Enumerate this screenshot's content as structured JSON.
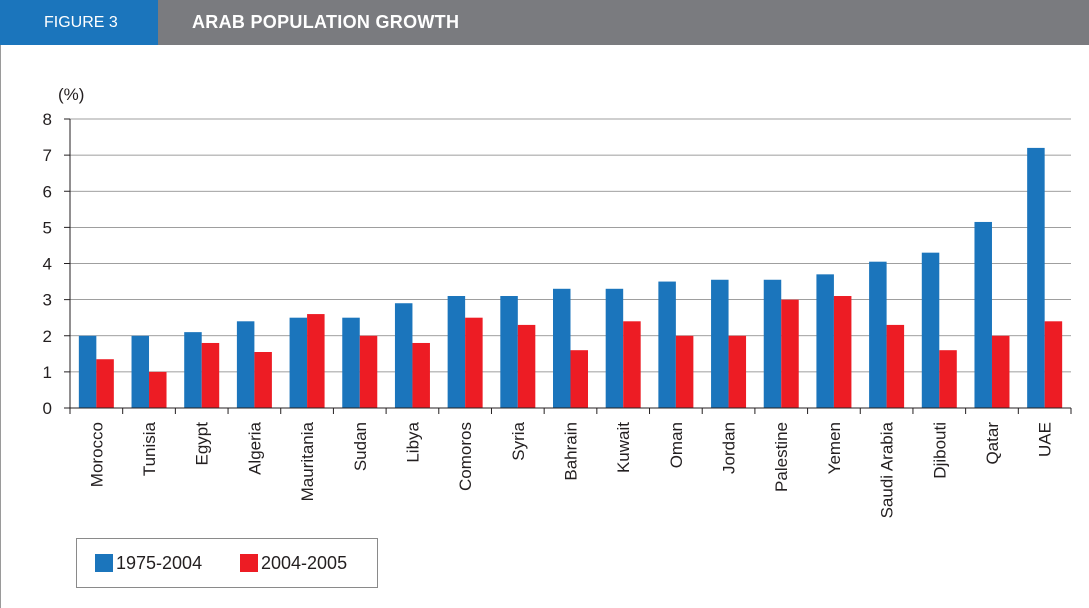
{
  "header": {
    "figure_label": "FIGURE 3",
    "title": "ARAB POPULATION GROWTH"
  },
  "colors": {
    "header_bg": "#7a7b7f",
    "tab_bg": "#1b75bc",
    "series_1": "#1b75bc",
    "series_2": "#ed1c24"
  },
  "chart_data": {
    "type": "bar",
    "title": "ARAB POPULATION GROWTH",
    "ylabel": "(%)",
    "xlabel": "",
    "ylim": [
      0,
      8
    ],
    "yticks": [
      0,
      1,
      2,
      3,
      4,
      5,
      6,
      7,
      8
    ],
    "grid": true,
    "legend_position": "bottom-left",
    "categories": [
      "Morocco",
      "Tunisia",
      "Egypt",
      "Algeria",
      "Mauritania",
      "Sudan",
      "Libya",
      "Comoros",
      "Syria",
      "Bahrain",
      "Kuwait",
      "Oman",
      "Jordan",
      "Palestine",
      "Yemen",
      "Saudi Arabia",
      "Djibouti",
      "Qatar",
      "UAE"
    ],
    "series": [
      {
        "name": "1975-2004",
        "values": [
          2.0,
          2.0,
          2.1,
          2.4,
          2.5,
          2.5,
          2.9,
          3.1,
          3.1,
          3.3,
          3.3,
          3.5,
          3.55,
          3.55,
          3.7,
          4.05,
          4.3,
          5.15,
          7.2
        ]
      },
      {
        "name": "2004-2005",
        "values": [
          1.35,
          1.0,
          1.8,
          1.55,
          2.6,
          2.0,
          1.8,
          2.5,
          2.3,
          1.6,
          2.4,
          2.0,
          2.0,
          3.0,
          3.1,
          2.3,
          1.6,
          2.0,
          2.4
        ]
      }
    ]
  }
}
